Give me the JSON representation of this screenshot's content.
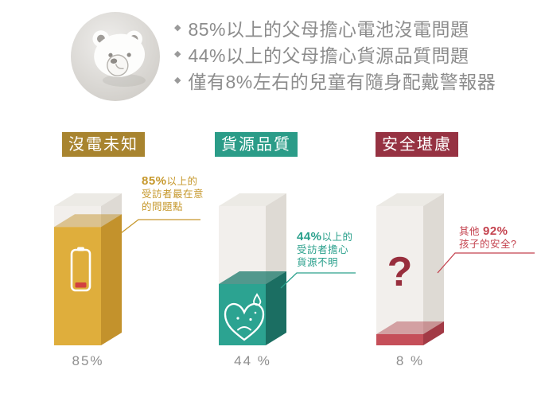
{
  "page": {
    "background": "#ffffff"
  },
  "hero": {
    "bullet_marker": "◆",
    "text_color": "#8c8c8c",
    "bullets": [
      "85%以上的父母擔心電池沒電問題",
      "44%以上的父母擔心貨源品質問題",
      "僅有8%左右的兒童有隨身配戴警報器"
    ]
  },
  "empty_box": {
    "front": "#f2efec",
    "side": "#dedad4",
    "top": "#eceae5"
  },
  "columns": [
    {
      "header": "沒電未知",
      "header_bg": "#a8842f",
      "accent": "#c6982c",
      "colors": {
        "front": "#dfae3c",
        "side": "#c3922c",
        "surface": "rgba(190,140,30,0.45)"
      },
      "annotation": {
        "pre": "",
        "strong": "85%",
        "post": "以上的",
        "line2": "受訪者最在意",
        "line3": "的問題點"
      },
      "icon": "battery-low-icon",
      "icon_accent": "#d24040"
    },
    {
      "header": "貨源品質",
      "header_bg": "#2b9c88",
      "accent": "#2aa08c",
      "colors": {
        "front": "#2ca391",
        "side": "#1b6e62",
        "surface": "rgba(26,122,108,0.74)"
      },
      "annotation": {
        "pre": "",
        "strong": "44%",
        "post": "以上的",
        "line2": "受訪者擔心",
        "line3": "貨源不明"
      },
      "icon": "worried-heart-icon"
    },
    {
      "header": "安全堪慮",
      "header_bg": "#963242",
      "accent": "#c4424e",
      "colors": {
        "front": "#c54f59",
        "side": "#a23a45",
        "surface": "rgba(170,50,60,0.42)"
      },
      "annotation": {
        "pre": "其他 ",
        "strong": "92%",
        "post": "",
        "line2": "孩子的安全?",
        "line3": ""
      },
      "icon": "question-mark-icon",
      "icon_glyph": "?",
      "icon_color": "#982e3d"
    }
  ],
  "chart_data": {
    "type": "bar",
    "style": "3d-box-fill-level",
    "categories": [
      "沒電未知",
      "貨源品質",
      "安全堪慮"
    ],
    "values": [
      85,
      44,
      8
    ],
    "value_labels": [
      "85%",
      "44 %",
      "8 %"
    ],
    "unit": "%",
    "ylim": [
      0,
      100
    ],
    "annotations": [
      "85%以上的受訪者最在意的問題點",
      "44%以上的受訪者擔心貨源不明",
      "其他92%孩子的安全?"
    ]
  }
}
